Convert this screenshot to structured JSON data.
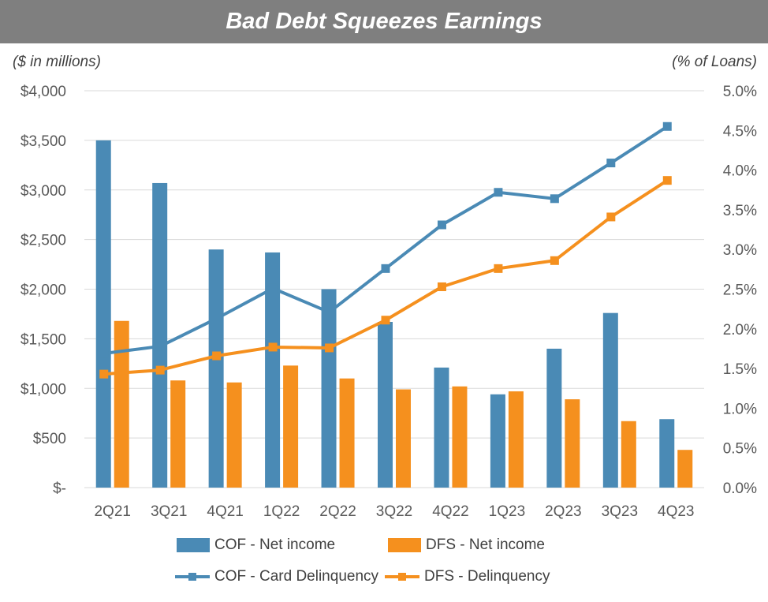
{
  "chart_data": {
    "type": "bar",
    "title": "Bad Debt Squeezes Earnings",
    "left_unit": "($ in millions)",
    "right_unit": "(% of Loans)",
    "categories": [
      "2Q21",
      "3Q21",
      "4Q21",
      "1Q22",
      "2Q22",
      "3Q22",
      "4Q22",
      "1Q23",
      "2Q23",
      "3Q23",
      "4Q23"
    ],
    "y_left": {
      "min": 0,
      "max": 4000,
      "ticks": [
        "$-",
        "$500",
        "$1,000",
        "$1,500",
        "$2,000",
        "$2,500",
        "$3,000",
        "$3,500",
        "$4,000"
      ]
    },
    "y_right": {
      "min": 0,
      "max": 5.0,
      "ticks": [
        "0.0%",
        "0.5%",
        "1.0%",
        "1.5%",
        "2.0%",
        "2.5%",
        "3.0%",
        "3.5%",
        "4.0%",
        "4.5%",
        "5.0%"
      ]
    },
    "grid": true,
    "bar_series": [
      {
        "name": "COF - Net income",
        "color": "#4a8ab5",
        "values": [
          3500,
          3070,
          2400,
          2370,
          2000,
          1670,
          1210,
          940,
          1400,
          1760,
          690
        ]
      },
      {
        "name": "DFS - Net income",
        "color": "#f5901e",
        "values": [
          1680,
          1080,
          1060,
          1230,
          1100,
          990,
          1020,
          970,
          890,
          670,
          380
        ]
      }
    ],
    "line_series": [
      {
        "name": "COF - Card Delinquency",
        "color": "#4a8ab5",
        "values": [
          1.69,
          1.78,
          2.13,
          2.51,
          2.21,
          2.76,
          3.31,
          3.72,
          3.64,
          4.09,
          4.55
        ]
      },
      {
        "name": "DFS - Delinquency",
        "color": "#f5901e",
        "values": [
          1.43,
          1.48,
          1.66,
          1.77,
          1.76,
          2.11,
          2.53,
          2.76,
          2.86,
          3.41,
          3.87
        ]
      }
    ],
    "legend_position": "bottom"
  }
}
